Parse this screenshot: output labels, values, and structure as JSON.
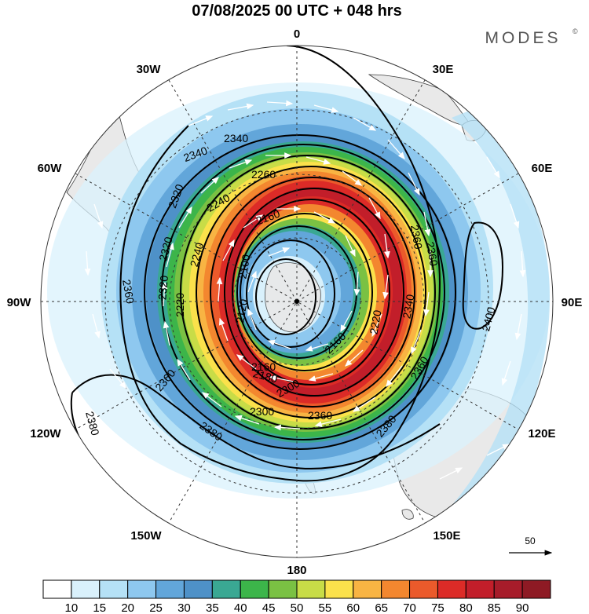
{
  "header": {
    "title": "07/08/2025  00 UTC  + 048 hrs",
    "brand": "MODES",
    "brand_mark": "©"
  },
  "longitude_labels": {
    "lon_0": "0",
    "lon_30e": "30E",
    "lon_60e": "60E",
    "lon_90e": "90E",
    "lon_120e": "120E",
    "lon_150e": "150E",
    "lon_180": "180",
    "lon_150w": "150W",
    "lon_120w": "120W",
    "lon_90w": "90W",
    "lon_60w": "60W",
    "lon_30w": "30W"
  },
  "contour_labels": {
    "c1": "2340",
    "c2": "2340",
    "c3": "2260",
    "c4": "2320",
    "c5": "2240",
    "c6": "2160",
    "c7": "2320",
    "c8": "2240",
    "c9": "2360",
    "c10": "2320",
    "c11": "2360",
    "c12": "2220",
    "c13": "2340",
    "c14": "2220",
    "c15": "2120",
    "c16": "2160",
    "c17": "2160",
    "c18": "2180",
    "c19": "2300",
    "c20": "2300",
    "c21": "2360",
    "c22": "2360",
    "c23": "2360",
    "c24": "2380",
    "c25": "2380",
    "c26": "2380",
    "c27": "2400",
    "c28": "2360",
    "c29": "2100"
  },
  "reference_vector": {
    "value": "50"
  },
  "colorbar": {
    "labels": [
      "10",
      "15",
      "20",
      "25",
      "30",
      "35",
      "40",
      "45",
      "50",
      "55",
      "60",
      "65",
      "70",
      "75",
      "80",
      "85",
      "90"
    ],
    "colors": [
      "#ffffff",
      "#d9f1fc",
      "#b5e1f6",
      "#8ec8ef",
      "#62a6da",
      "#4e91c8",
      "#3aa893",
      "#3cb54a",
      "#7ac143",
      "#c8dc47",
      "#fbe14b",
      "#f8b443",
      "#f3872f",
      "#eb5a2b",
      "#dc2b27",
      "#c21e2a",
      "#a71c2a",
      "#8e1a24"
    ]
  },
  "colors": {
    "land": "#e9e9e9",
    "coast": "#3a3a3a",
    "contour": "#000000",
    "grid": "#333333",
    "vector": "#ffffff"
  }
}
